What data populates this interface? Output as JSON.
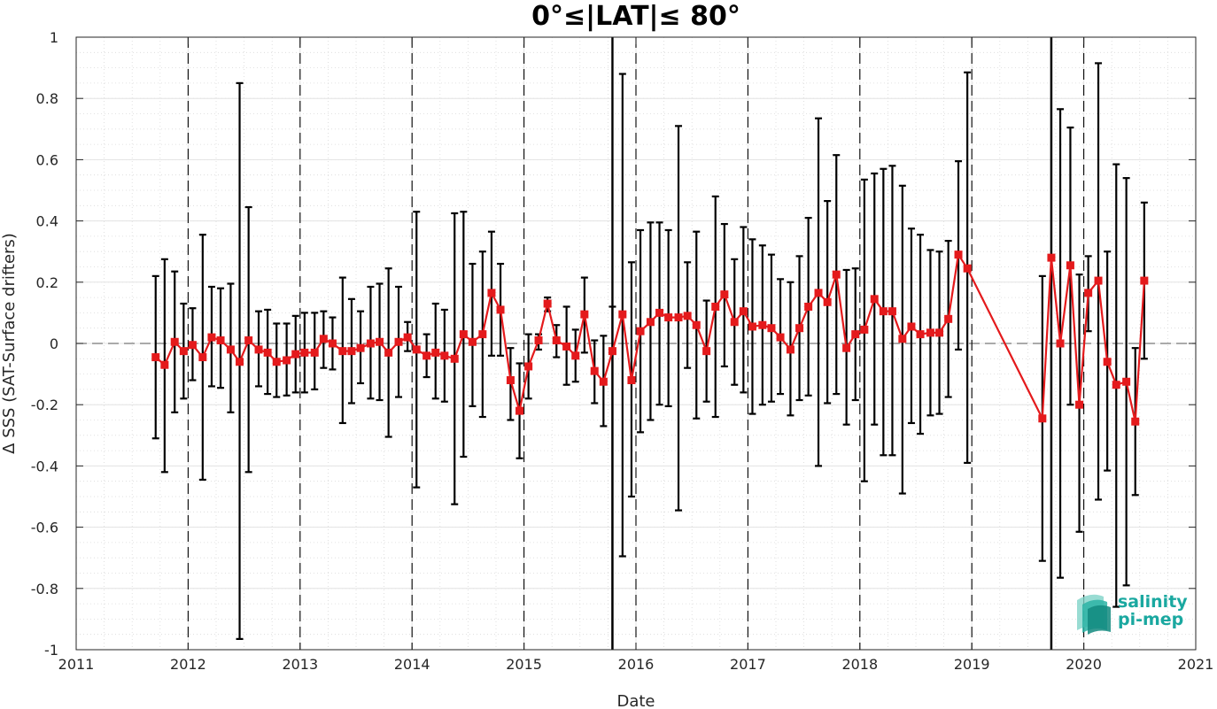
{
  "chart_data": {
    "type": "line",
    "title": "0°≤|LAT|≤ 80°",
    "xlabel": "Date",
    "ylabel": "Δ SSS (SAT-Surface drifters)",
    "xlim": [
      2011,
      2021
    ],
    "ylim": [
      -1,
      1
    ],
    "x_ticks": [
      "2011",
      "2012",
      "2013",
      "2014",
      "2015",
      "2016",
      "2017",
      "2018",
      "2019",
      "2020",
      "2021"
    ],
    "y_ticks": [
      "-1",
      "-0.8",
      "-0.6",
      "-0.4",
      "-0.2",
      "0",
      "0.2",
      "0.4",
      "0.6",
      "0.8",
      "1"
    ],
    "grid": true,
    "minor_grid": true,
    "zero_line": true,
    "year_boundaries_dashed": [
      2012,
      2013,
      2014,
      2015,
      2016,
      2017,
      2018,
      2019,
      2020
    ],
    "solid_vertical_lines": [
      2015.79,
      2019.71
    ],
    "series_color": "#e41a1c",
    "errorbar_color": "#000000",
    "series": [
      {
        "x": [
          2011.71,
          2011.79,
          2011.88,
          2011.96,
          2012.04,
          2012.13,
          2012.21,
          2012.29,
          2012.38,
          2012.46,
          2012.54,
          2012.63,
          2012.71,
          2012.79,
          2012.88,
          2012.96,
          2013.04,
          2013.13,
          2013.21,
          2013.29,
          2013.38,
          2013.46,
          2013.54,
          2013.63,
          2013.71,
          2013.79,
          2013.88,
          2013.96,
          2014.04,
          2014.13,
          2014.21,
          2014.29,
          2014.38,
          2014.46,
          2014.54,
          2014.63,
          2014.71,
          2014.79,
          2014.88,
          2014.96,
          2015.04,
          2015.13,
          2015.21,
          2015.29,
          2015.38,
          2015.46,
          2015.54,
          2015.63,
          2015.71,
          2015.79,
          2015.88,
          2015.96,
          2016.04,
          2016.13,
          2016.21,
          2016.29,
          2016.38,
          2016.46,
          2016.54,
          2016.63,
          2016.71,
          2016.79,
          2016.88,
          2016.96,
          2017.04,
          2017.13,
          2017.21,
          2017.29,
          2017.38,
          2017.46,
          2017.54,
          2017.63,
          2017.71,
          2017.79,
          2017.88,
          2017.96,
          2018.04,
          2018.13,
          2018.21,
          2018.29,
          2018.38,
          2018.46,
          2018.54,
          2018.63,
          2018.71,
          2018.79,
          2018.88,
          2018.96,
          2019.63,
          2019.71,
          2019.79,
          2019.88,
          2019.96,
          2020.04,
          2020.13,
          2020.21,
          2020.29,
          2020.38,
          2020.46,
          2020.54
        ],
        "y": [
          -0.045,
          -0.07,
          0.005,
          -0.025,
          -0.005,
          -0.045,
          0.02,
          0.01,
          -0.02,
          -0.06,
          0.01,
          -0.02,
          -0.03,
          -0.06,
          -0.055,
          -0.035,
          -0.03,
          -0.03,
          0.015,
          0.0,
          -0.025,
          -0.025,
          -0.015,
          0.0,
          0.005,
          -0.03,
          0.005,
          0.02,
          -0.02,
          -0.04,
          -0.03,
          -0.04,
          -0.05,
          0.03,
          0.005,
          0.03,
          0.165,
          0.11,
          -0.12,
          -0.22,
          -0.075,
          0.01,
          0.13,
          0.01,
          -0.01,
          -0.04,
          0.095,
          -0.09,
          -0.125,
          -0.025,
          0.095,
          -0.12,
          0.04,
          0.07,
          0.1,
          0.085,
          0.085,
          0.09,
          0.06,
          -0.025,
          0.12,
          0.16,
          0.07,
          0.105,
          0.055,
          0.06,
          0.05,
          0.02,
          -0.02,
          0.05,
          0.12,
          0.165,
          0.135,
          0.225,
          -0.015,
          0.03,
          0.045,
          0.145,
          0.105,
          0.105,
          0.015,
          0.055,
          0.03,
          0.035,
          0.035,
          0.08,
          0.29,
          0.245,
          -0.245,
          0.28,
          0.0,
          0.255,
          -0.2,
          0.165,
          0.205,
          -0.06,
          -0.135,
          -0.125,
          -0.255,
          0.205
        ],
        "err_upper": [
          0.22,
          0.275,
          0.235,
          0.13,
          0.115,
          0.355,
          0.185,
          0.18,
          0.195,
          0.85,
          0.445,
          0.105,
          0.11,
          0.065,
          0.065,
          0.09,
          0.1,
          0.1,
          0.105,
          0.085,
          0.215,
          0.145,
          0.105,
          0.185,
          0.195,
          0.245,
          0.185,
          0.07,
          0.43,
          0.03,
          0.13,
          0.11,
          0.425,
          0.43,
          0.26,
          0.3,
          0.365,
          0.26,
          -0.015,
          -0.065,
          0.03,
          0.03,
          0.15,
          0.06,
          0.12,
          0.045,
          0.215,
          0.01,
          0.025,
          0.12,
          0.88,
          0.265,
          0.37,
          0.395,
          0.395,
          0.37,
          0.71,
          0.265,
          0.365,
          0.14,
          0.48,
          0.39,
          0.275,
          0.38,
          0.34,
          0.32,
          0.29,
          0.21,
          0.2,
          0.285,
          0.41,
          0.735,
          0.465,
          0.615,
          0.24,
          0.245,
          0.535,
          0.555,
          0.57,
          0.58,
          0.515,
          0.375,
          0.355,
          0.305,
          0.3,
          0.335,
          0.595,
          0.885,
          0.22,
          1.0,
          0.765,
          0.705,
          0.225,
          0.285,
          0.915,
          0.3,
          0.585,
          0.54,
          -0.015,
          0.46
        ],
        "err_lower": [
          -0.31,
          -0.42,
          -0.225,
          -0.18,
          -0.12,
          -0.445,
          -0.14,
          -0.145,
          -0.225,
          -0.965,
          -0.42,
          -0.14,
          -0.165,
          -0.175,
          -0.17,
          -0.16,
          -0.16,
          -0.15,
          -0.08,
          -0.085,
          -0.26,
          -0.195,
          -0.13,
          -0.18,
          -0.185,
          -0.305,
          -0.175,
          -0.025,
          -0.47,
          -0.11,
          -0.18,
          -0.19,
          -0.525,
          -0.37,
          -0.205,
          -0.24,
          -0.04,
          -0.04,
          -0.25,
          -0.375,
          -0.18,
          -0.02,
          0.105,
          -0.045,
          -0.135,
          -0.125,
          -0.03,
          -0.195,
          -0.27,
          -1.0,
          -0.695,
          -0.5,
          -0.29,
          -0.25,
          -0.2,
          -0.205,
          -0.545,
          -0.08,
          -0.245,
          -0.19,
          -0.24,
          -0.075,
          -0.135,
          -0.16,
          -0.23,
          -0.2,
          -0.19,
          -0.165,
          -0.235,
          -0.185,
          -0.17,
          -0.4,
          -0.195,
          -0.165,
          -0.265,
          -0.185,
          -0.45,
          -0.265,
          -0.365,
          -0.365,
          -0.49,
          -0.26,
          -0.295,
          -0.235,
          -0.23,
          -0.175,
          -0.02,
          -0.39,
          -0.71,
          -1.0,
          -0.765,
          -0.2,
          -0.615,
          0.04,
          -0.51,
          -0.415,
          -0.86,
          -0.79,
          -0.495,
          -0.05
        ]
      }
    ]
  },
  "logo": {
    "line1": "salinity",
    "line2": "pi-mep",
    "color": "#1aa8a0"
  }
}
